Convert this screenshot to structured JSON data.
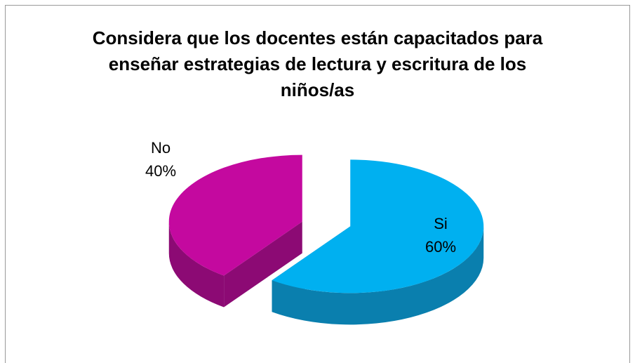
{
  "chart_data": {
    "type": "pie",
    "title": "Considera que los docentes están capacitados para enseñar estrategias de lectura y escritura de los niños/as",
    "categories": [
      "Si",
      "No"
    ],
    "values": [
      60,
      40
    ],
    "value_labels": [
      "60%",
      "40%"
    ],
    "colors": [
      "#00b0f0",
      "#c4099f"
    ],
    "side_colors": [
      "#0a7fae",
      "#8c0a74"
    ]
  }
}
